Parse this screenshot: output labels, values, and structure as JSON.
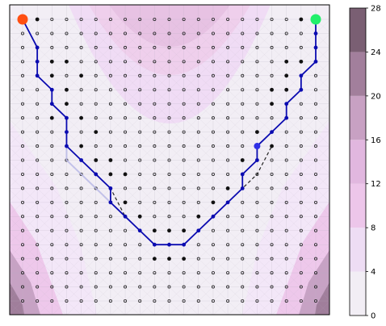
{
  "chart_data": {
    "type": "heatmap",
    "title": "",
    "xlabel": "",
    "ylabel": "",
    "grid": true,
    "colorbar": {
      "ticks": [
        0,
        4,
        8,
        12,
        16,
        20,
        24,
        28
      ],
      "tick_labels": [
        "0",
        "4",
        "8",
        "12",
        "16",
        "20",
        "24",
        "28"
      ],
      "colors": [
        "#f2eef5",
        "#eeddf4",
        "#edc6ea",
        "#e1b7df",
        "#c8a1c3",
        "#a27f9c",
        "#7a5f73"
      ]
    },
    "markers": {
      "start_color": "#ff4f12",
      "goal_color": "#21f06a",
      "sample_color": "#111111",
      "path_color": "#0b0bb0",
      "current_color": "#2f2fe6"
    }
  }
}
